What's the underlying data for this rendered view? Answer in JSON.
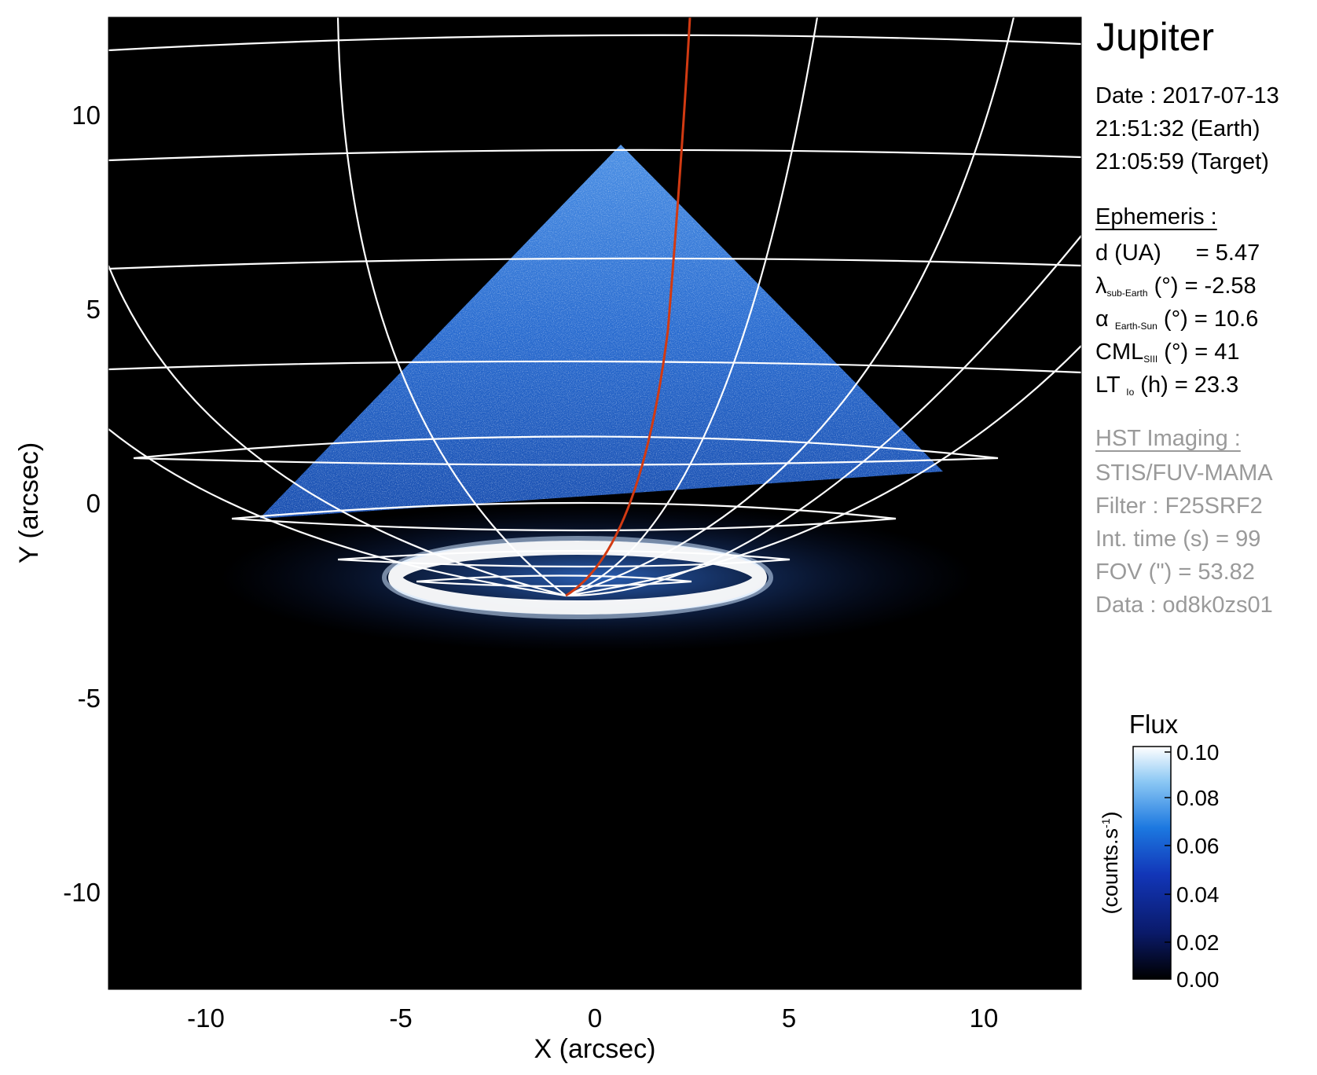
{
  "image": {
    "panel": {
      "title": "Jupiter",
      "date_line": "Date : 2017-07-13",
      "earth_time": "21:51:32 (Earth)",
      "target_time": "21:05:59 (Target)",
      "ephemeris_header": "Ephemeris :",
      "ephemeris": [
        {
          "label": "d (UA)",
          "sub": "",
          "unit": "",
          "value": "= 5.47"
        },
        {
          "label": "λ",
          "sub": "sub-Earth",
          "unit": " (°)",
          "value": "= -2.58"
        },
        {
          "label": "α",
          "sub": "Earth-Sun",
          "unit": " (°)",
          "value": "= 10.6"
        },
        {
          "label": "CML",
          "sub": "SIII",
          "unit": " (°)",
          "value": "= 41"
        },
        {
          "label": "LT",
          "sub": "Io",
          "unit": " (h)",
          "value": "= 23.3"
        }
      ],
      "hst_header": "HST Imaging :",
      "hst": [
        "STIS/FUV-MAMA",
        "Filter : F25SRF2",
        "Int. time (s) = 99",
        "FOV (\") = 53.82",
        "Data : od8k0zs01"
      ]
    },
    "axes": {
      "x_label": "X (arcsec)",
      "y_label": "Y (arcsec)",
      "x_ticks": [
        "-10",
        "-5",
        "0",
        "5",
        "10"
      ],
      "y_ticks": [
        "10",
        "5",
        "0",
        "-5",
        "-10"
      ],
      "x_range": [
        -12.5,
        12.5
      ],
      "y_range": [
        -12.5,
        12.5
      ]
    },
    "colorbar": {
      "title": "Flux",
      "units": "(counts.s",
      "units_sup": "-1",
      "units_end": ")",
      "ticks": [
        "0.10",
        "0.08",
        "0.06",
        "0.04",
        "0.02",
        "0.00"
      ],
      "range": [
        0.0,
        0.1
      ]
    },
    "colors": {
      "background": "#000000",
      "emission": "#1e6fd6",
      "aurora": "#ffffff",
      "grid": "#ffffff",
      "trace": "#d23a12"
    }
  }
}
